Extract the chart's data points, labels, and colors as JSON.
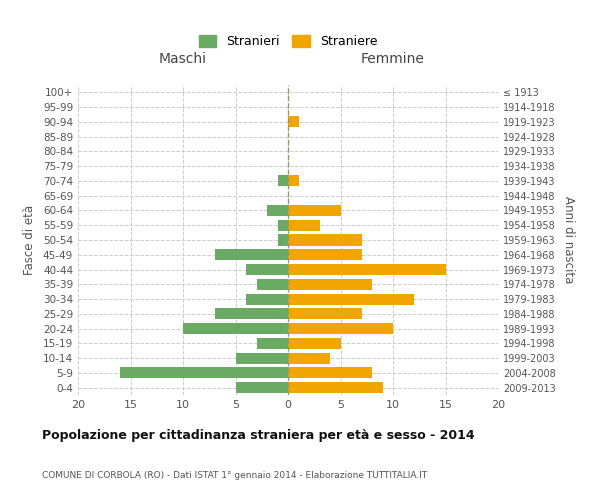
{
  "age_groups": [
    "100+",
    "95-99",
    "90-94",
    "85-89",
    "80-84",
    "75-79",
    "70-74",
    "65-69",
    "60-64",
    "55-59",
    "50-54",
    "45-49",
    "40-44",
    "35-39",
    "30-34",
    "25-29",
    "20-24",
    "15-19",
    "10-14",
    "5-9",
    "0-4"
  ],
  "birth_years": [
    "≤ 1913",
    "1914-1918",
    "1919-1923",
    "1924-1928",
    "1929-1933",
    "1934-1938",
    "1939-1943",
    "1944-1948",
    "1949-1953",
    "1954-1958",
    "1959-1963",
    "1964-1968",
    "1969-1973",
    "1974-1978",
    "1979-1983",
    "1984-1988",
    "1989-1993",
    "1994-1998",
    "1999-2003",
    "2004-2008",
    "2009-2013"
  ],
  "maschi": [
    0,
    0,
    0,
    0,
    0,
    0,
    1,
    0,
    2,
    1,
    1,
    7,
    4,
    3,
    4,
    7,
    10,
    3,
    5,
    16,
    5
  ],
  "femmine": [
    0,
    0,
    1,
    0,
    0,
    0,
    1,
    0,
    5,
    3,
    7,
    7,
    15,
    8,
    12,
    7,
    10,
    5,
    4,
    8,
    9
  ],
  "maschi_color": "#6aaa64",
  "femmine_color": "#f0a500",
  "title": "Popolazione per cittadinanza straniera per età e sesso - 2014",
  "subtitle": "COMUNE DI CORBOLA (RO) - Dati ISTAT 1° gennaio 2014 - Elaborazione TUTTITALIA.IT",
  "xlabel_left": "Maschi",
  "xlabel_right": "Femmine",
  "ylabel_left": "Fasce di età",
  "ylabel_right": "Anni di nascita",
  "legend_maschi": "Stranieri",
  "legend_femmine": "Straniere",
  "xlim": 20,
  "background_color": "#ffffff",
  "grid_color": "#cccccc",
  "bar_height": 0.75
}
